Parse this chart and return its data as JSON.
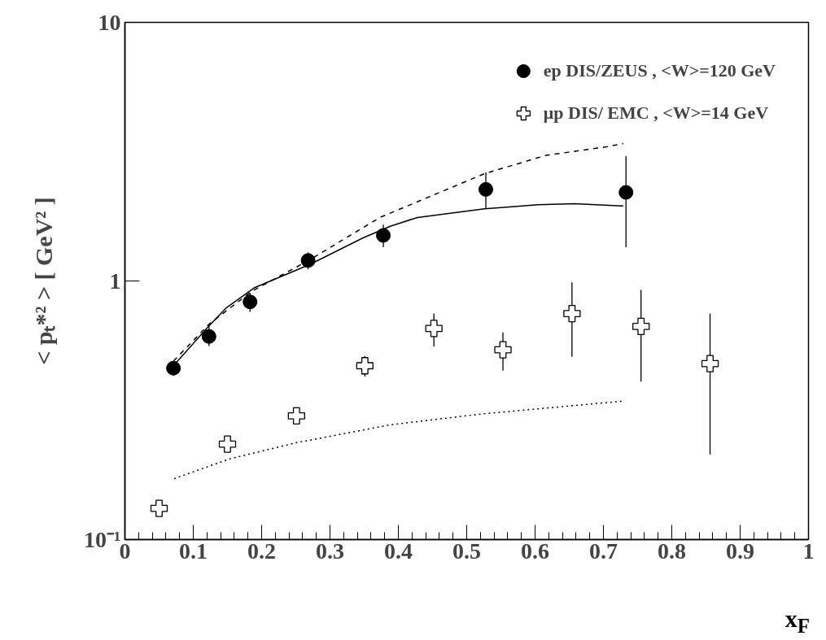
{
  "chart_data": {
    "type": "scatter",
    "xlabel": "x$_{F}$",
    "ylabel": "< pₜ*² > [ GeV² ]",
    "xlim": [
      0,
      1
    ],
    "ylim": [
      0.1,
      10
    ],
    "log": "y",
    "grid": false,
    "legend": "top right",
    "xticks": [
      0,
      0.1,
      0.2,
      0.3,
      0.4,
      0.5,
      0.6,
      0.7,
      0.8,
      0.9,
      1
    ],
    "yticks": [
      {
        "value": 0.1,
        "label": "10⁻¹"
      },
      1,
      10
    ],
    "series": [
      {
        "name": "ep DIS/ZEUS , <W>=120 GeV",
        "marker": "circle",
        "color": "#000000",
        "x": [
          0.071,
          0.123,
          0.183,
          0.268,
          0.378,
          0.528,
          0.733
        ],
        "values": [
          0.46,
          0.61,
          0.83,
          1.2,
          1.5,
          2.26,
          2.2
        ],
        "errors": [
          [
            0.43,
            0.48
          ],
          [
            0.56,
            0.67
          ],
          [
            0.76,
            0.9
          ],
          [
            1.11,
            1.29
          ],
          [
            1.35,
            1.65
          ],
          [
            1.9,
            2.63
          ],
          [
            1.35,
            3.04
          ]
        ]
      },
      {
        "name": "μp DIS/ EMC , <W>=14 GeV",
        "marker": "cross",
        "color": "#000000",
        "x": [
          0.05,
          0.15,
          0.251,
          0.351,
          0.452,
          0.553,
          0.654,
          0.755,
          0.856
        ],
        "values": [
          0.132,
          0.234,
          0.301,
          0.47,
          0.655,
          0.542,
          0.748,
          0.667,
          0.479
        ],
        "errors": [
          null,
          null,
          null,
          [
            0.427,
            0.513
          ],
          [
            0.558,
            0.748
          ],
          [
            0.45,
            0.632
          ],
          [
            0.509,
            0.988
          ],
          [
            0.408,
            0.924
          ],
          [
            0.213,
            0.748
          ]
        ]
      },
      {
        "type": "line",
        "line_style": "solid",
        "marker": "none",
        "color": "#000000",
        "x": [
          0.071,
          0.123,
          0.149,
          0.189,
          0.271,
          0.349,
          0.389,
          0.428,
          0.526,
          0.604,
          0.658,
          0.729
        ],
        "values": [
          0.47,
          0.67,
          0.79,
          0.94,
          1.16,
          1.47,
          1.63,
          1.76,
          1.9,
          1.97,
          1.99,
          1.95
        ]
      },
      {
        "type": "line",
        "line_style": "dashed",
        "marker": "none",
        "color": "#000000",
        "x": [
          0.071,
          0.123,
          0.185,
          0.271,
          0.373,
          0.526,
          0.616,
          0.704,
          0.729
        ],
        "values": [
          0.49,
          0.68,
          0.91,
          1.21,
          1.76,
          2.6,
          3.06,
          3.3,
          3.4
        ]
      },
      {
        "type": "line",
        "line_style": "dotted",
        "marker": "none",
        "color": "#000000",
        "x": [
          0.072,
          0.153,
          0.251,
          0.389,
          0.522,
          0.728
        ],
        "values": [
          0.172,
          0.205,
          0.237,
          0.278,
          0.306,
          0.343
        ]
      }
    ]
  }
}
